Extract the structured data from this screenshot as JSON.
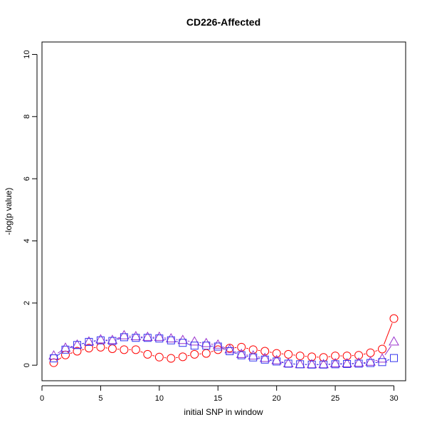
{
  "chart_data": {
    "type": "line",
    "title": "CD226-Affected",
    "xlabel": "initial SNP in window",
    "ylabel": "-log(p value)",
    "xlim": [
      0,
      31
    ],
    "ylim": [
      -0.5,
      10.4
    ],
    "xticks": [
      0,
      5,
      10,
      15,
      20,
      25,
      30
    ],
    "yticks": [
      0,
      2,
      4,
      6,
      8,
      10
    ],
    "grid": false,
    "x": [
      1,
      2,
      3,
      4,
      5,
      6,
      7,
      8,
      9,
      10,
      11,
      12,
      13,
      14,
      15,
      16,
      17,
      18,
      19,
      20,
      21,
      22,
      23,
      24,
      25,
      26,
      27,
      28,
      29,
      30
    ],
    "series": [
      {
        "marker": "circle",
        "color": "#ff0000",
        "values": [
          0.08,
          0.33,
          0.45,
          0.55,
          0.58,
          0.53,
          0.5,
          0.5,
          0.35,
          0.26,
          0.22,
          0.27,
          0.35,
          0.38,
          0.5,
          0.55,
          0.58,
          0.5,
          0.45,
          0.38,
          0.35,
          0.3,
          0.27,
          0.25,
          0.3,
          0.3,
          0.32,
          0.4,
          0.52,
          1.5
        ]
      },
      {
        "marker": "triangle",
        "color": "#9a32cd",
        "values": [
          0.3,
          0.55,
          0.65,
          0.75,
          0.82,
          0.8,
          0.95,
          0.92,
          0.9,
          0.9,
          0.85,
          0.8,
          0.75,
          0.7,
          0.65,
          0.5,
          0.35,
          0.3,
          0.22,
          0.15,
          0.05,
          0.02,
          0.02,
          0.02,
          0.05,
          0.05,
          0.07,
          0.1,
          0.2,
          0.75
        ]
      },
      {
        "marker": "square",
        "color": "#3333ee",
        "values": [
          0.22,
          0.5,
          0.65,
          0.75,
          0.8,
          0.78,
          0.9,
          0.88,
          0.88,
          0.86,
          0.8,
          0.72,
          0.63,
          0.63,
          0.6,
          0.45,
          0.32,
          0.25,
          0.18,
          0.12,
          0.05,
          0.03,
          0.02,
          0.02,
          0.03,
          0.04,
          0.05,
          0.07,
          0.1,
          0.23
        ]
      }
    ]
  }
}
